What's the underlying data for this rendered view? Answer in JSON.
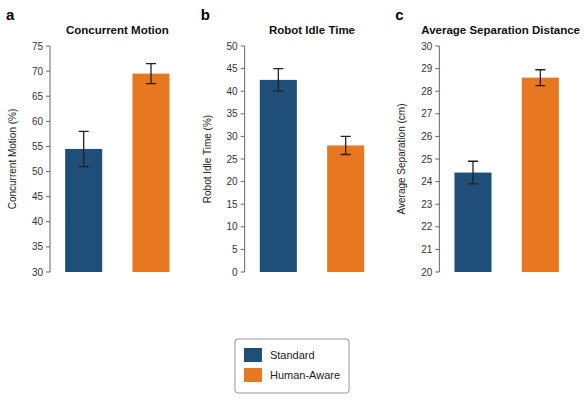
{
  "chart_data": [
    {
      "type": "bar",
      "title": "Concurrent Motion",
      "ylabel": "Concurrent Motion (%)",
      "annotations": [
        "a"
      ],
      "categories": [
        null
      ],
      "series": [
        {
          "name": "Standard",
          "color": "#1F4E79",
          "values": [
            54.5
          ],
          "errors": [
            3.5
          ]
        },
        {
          "name": "Human-Aware",
          "color": "#E87722",
          "values": [
            69.5
          ],
          "errors": [
            2.0
          ]
        }
      ],
      "ylim": [
        30,
        75
      ],
      "yticks": [
        30,
        35,
        40,
        45,
        50,
        55,
        60,
        65,
        70,
        75
      ],
      "grid": false,
      "tick_labels": "y",
      "legend": "bottom"
    },
    {
      "type": "bar",
      "title": "Robot Idle Time",
      "ylabel": "Robot Idle Time (%)",
      "annotations": [
        "b"
      ],
      "categories": [
        null
      ],
      "series": [
        {
          "name": "Standard",
          "color": "#1F4E79",
          "values": [
            42.5
          ],
          "errors": [
            2.5
          ]
        },
        {
          "name": "Human-Aware",
          "color": "#E87722",
          "values": [
            28.0
          ],
          "errors": [
            2.0
          ]
        }
      ],
      "ylim": [
        0,
        50
      ],
      "yticks": [
        0,
        5,
        10,
        15,
        20,
        25,
        30,
        35,
        40,
        45,
        50
      ],
      "grid": false,
      "tick_labels": "y"
    },
    {
      "type": "bar",
      "title": "Average Separation Distance",
      "ylabel": "Average Separation (cm)",
      "annotations": [
        "c"
      ],
      "categories": [
        null
      ],
      "series": [
        {
          "name": "Standard",
          "color": "#1F4E79",
          "values": [
            24.4
          ],
          "errors": [
            0.5
          ]
        },
        {
          "name": "Human-Aware",
          "color": "#E87722",
          "values": [
            28.6
          ],
          "errors": [
            0.35
          ]
        }
      ],
      "ylim": [
        20,
        30
      ],
      "yticks": [
        20,
        21,
        22,
        23,
        24,
        25,
        26,
        27,
        28,
        29,
        30
      ],
      "grid": false,
      "tick_labels": "y"
    }
  ]
}
